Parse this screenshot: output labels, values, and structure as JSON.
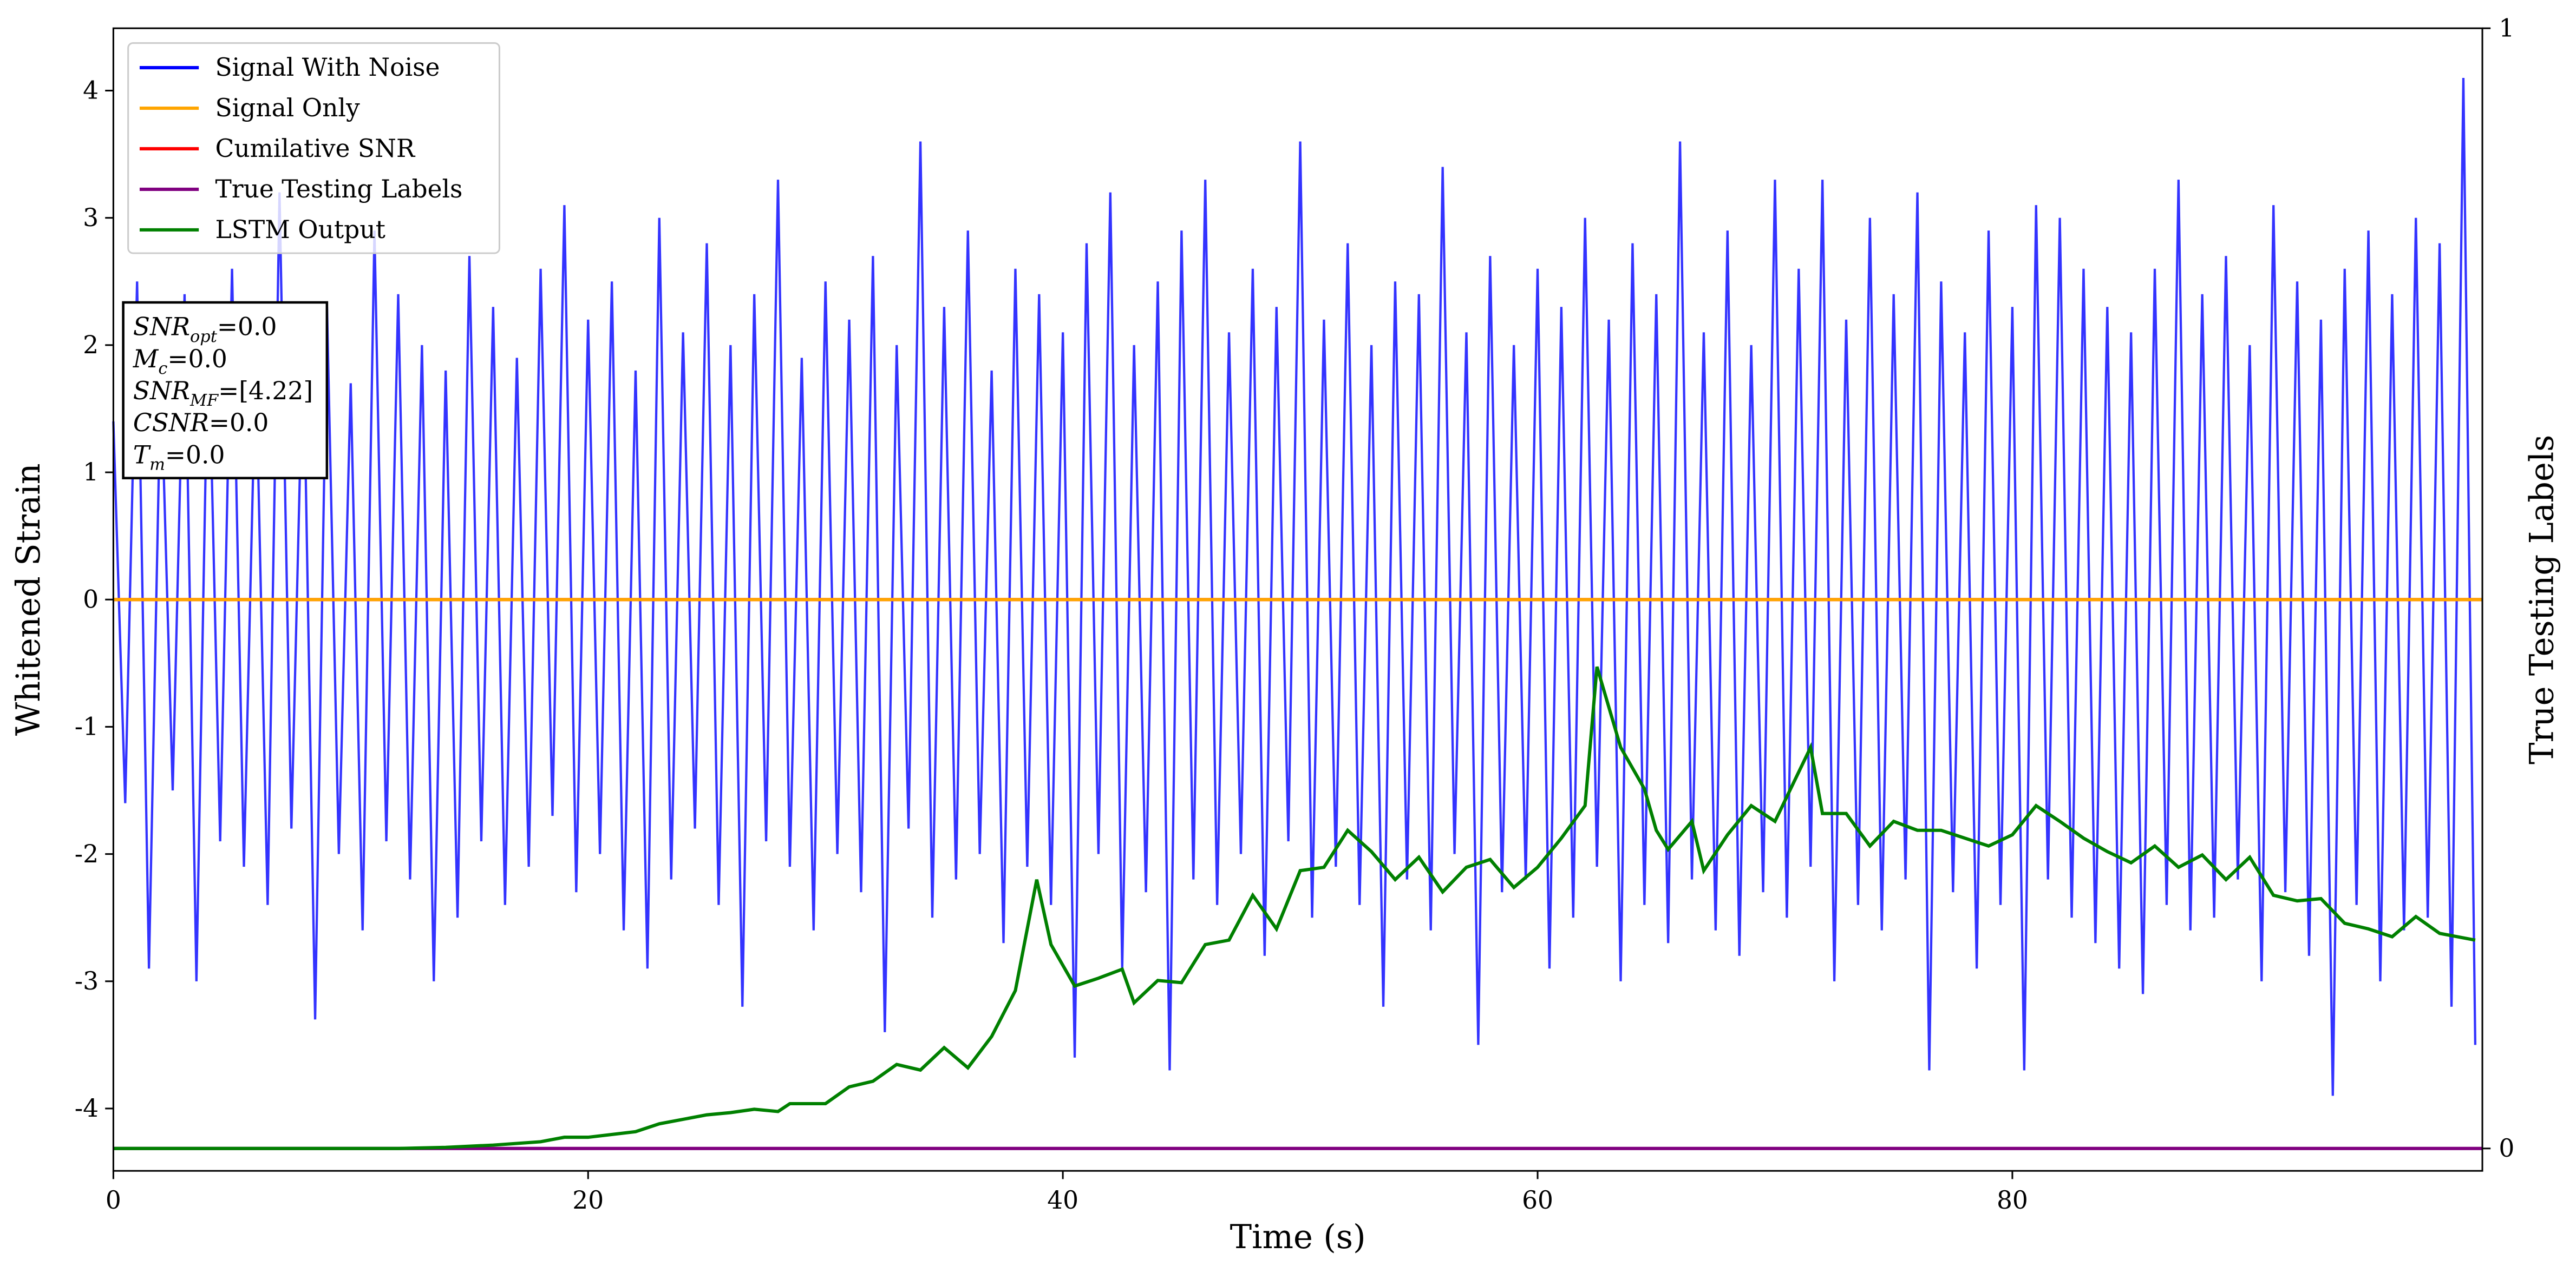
{
  "chart_data": {
    "type": "line",
    "x_label": "Time (s)",
    "y_label": "Whitened Strain",
    "y2_label": "True Testing Labels",
    "xlim": [
      0,
      99.8
    ],
    "ylim": [
      -4.49,
      4.49
    ],
    "y2lim": [
      -0.02,
      1
    ],
    "xticks": [
      0,
      20,
      40,
      60,
      80
    ],
    "yticks": [
      -4,
      -3,
      -2,
      -1,
      0,
      1,
      2,
      3,
      4
    ],
    "y2ticks": [
      0,
      1
    ],
    "legend": "upper left",
    "annotation": [
      {
        "main": "SNR",
        "sub": "opt",
        "rest": "=0.0"
      },
      {
        "main": "M",
        "sub": "c",
        "rest": "=0.0"
      },
      {
        "main": "SNR",
        "sub": "MF",
        "rest": "=[4.22]"
      },
      {
        "main": "CSNR",
        "sub": null,
        "rest": "=0.0"
      },
      {
        "main": "T",
        "sub": "m",
        "rest": "=0.0"
      }
    ],
    "series": [
      {
        "name": "Signal With Noise",
        "color": "#0000ff",
        "axis": "y",
        "x": [
          0,
          0.5,
          1,
          1.5,
          2,
          2.5,
          3,
          3.5,
          4,
          4.5,
          5,
          5.5,
          6,
          6.5,
          7,
          7.5,
          8,
          8.5,
          9,
          9.5,
          10,
          10.5,
          11,
          11.5,
          12,
          12.5,
          13,
          13.5,
          14,
          14.5,
          15,
          15.5,
          16,
          16.5,
          17,
          17.5,
          18,
          18.5,
          19,
          19.5,
          20,
          20.5,
          21,
          21.5,
          22,
          22.5,
          23,
          23.5,
          24,
          24.5,
          25,
          25.5,
          26,
          26.5,
          27,
          27.5,
          28,
          28.5,
          29,
          29.5,
          30,
          30.5,
          31,
          31.5,
          32,
          32.5,
          33,
          33.5,
          34,
          34.5,
          35,
          35.5,
          36,
          36.5,
          37,
          37.5,
          38,
          38.5,
          39,
          39.5,
          40,
          40.5,
          41,
          41.5,
          42,
          42.5,
          43,
          43.5,
          44,
          44.5,
          45,
          45.5,
          46,
          46.5,
          47,
          47.5,
          48,
          48.5,
          49,
          49.5,
          50,
          50.5,
          51,
          51.5,
          52,
          52.5,
          53,
          53.5,
          54,
          54.5,
          55,
          55.5,
          56,
          56.5,
          57,
          57.5,
          58,
          58.5,
          59,
          59.5,
          60,
          60.5,
          61,
          61.5,
          62,
          62.5,
          63,
          63.5,
          64,
          64.5,
          65,
          65.5,
          66,
          66.5,
          67,
          67.5,
          68,
          68.5,
          69,
          69.5,
          70,
          70.5,
          71,
          71.5,
          72,
          72.5,
          73,
          73.5,
          74,
          74.5,
          75,
          75.5,
          76,
          76.5,
          77,
          77.5,
          78,
          78.5,
          79,
          79.5,
          80,
          80.5,
          81,
          81.5,
          82,
          82.5,
          83,
          83.5,
          84,
          84.5,
          85,
          85.5,
          86,
          86.5,
          87,
          87.5,
          88,
          88.5,
          89,
          89.5,
          90,
          90.5,
          91,
          91.5,
          92,
          92.5,
          93,
          93.5,
          94,
          94.5,
          95,
          95.5,
          96,
          96.5,
          97,
          97.5,
          98,
          98.5,
          99,
          99.5
        ],
        "values": [
          1.4,
          -1.6,
          2.5,
          -2.9,
          1.8,
          -1.5,
          2.4,
          -3.0,
          2.2,
          -1.9,
          2.6,
          -2.1,
          1.9,
          -2.4,
          3.2,
          -1.8,
          2.1,
          -3.3,
          2.3,
          -2.0,
          1.7,
          -2.6,
          2.9,
          -1.9,
          2.4,
          -2.2,
          2.0,
          -3.0,
          1.8,
          -2.5,
          2.7,
          -1.9,
          2.3,
          -2.4,
          1.9,
          -2.1,
          2.6,
          -1.7,
          3.1,
          -2.3,
          2.2,
          -2.0,
          2.5,
          -2.6,
          1.8,
          -2.9,
          3.0,
          -2.2,
          2.1,
          -1.8,
          2.8,
          -2.4,
          2.0,
          -3.2,
          2.4,
          -1.9,
          3.3,
          -2.1,
          1.9,
          -2.6,
          2.5,
          -2.0,
          2.2,
          -2.3,
          2.7,
          -3.4,
          2.0,
          -1.8,
          3.6,
          -2.5,
          2.3,
          -2.2,
          2.9,
          -2.0,
          1.8,
          -2.7,
          2.6,
          -2.1,
          2.4,
          -2.4,
          2.1,
          -3.6,
          2.8,
          -2.0,
          3.2,
          -2.9,
          2.0,
          -2.3,
          2.5,
          -3.7,
          2.9,
          -2.2,
          3.3,
          -2.4,
          2.1,
          -2.0,
          2.6,
          -2.8,
          2.3,
          -1.9,
          3.6,
          -2.5,
          2.2,
          -2.1,
          2.8,
          -2.4,
          2.0,
          -3.2,
          2.5,
          -2.2,
          2.4,
          -2.6,
          3.4,
          -2.0,
          2.1,
          -3.5,
          2.7,
          -2.3,
          2.0,
          -2.2,
          2.6,
          -2.9,
          2.3,
          -2.5,
          3.0,
          -2.1,
          2.2,
          -3.0,
          2.8,
          -2.4,
          2.4,
          -2.7,
          3.6,
          -2.2,
          2.1,
          -2.6,
          2.9,
          -2.8,
          2.0,
          -2.3,
          3.3,
          -2.5,
          2.6,
          -2.1,
          3.3,
          -3.0,
          2.2,
          -2.4,
          3.0,
          -2.6,
          2.4,
          -2.2,
          3.2,
          -3.7,
          2.5,
          -2.3,
          2.1,
          -2.9,
          2.9,
          -2.4,
          2.3,
          -3.7,
          3.1,
          -2.2,
          3.0,
          -2.5,
          2.6,
          -2.7,
          2.3,
          -2.9,
          2.1,
          -3.1,
          2.6,
          -2.4,
          3.3,
          -2.6,
          2.4,
          -2.5,
          2.7,
          -2.2,
          2.0,
          -3.0,
          3.1,
          -2.3,
          2.5,
          -2.8,
          2.2,
          -3.9,
          2.6,
          -2.4,
          2.9,
          -3.0,
          2.4,
          -2.6,
          3.0,
          -2.5,
          2.8,
          -3.2,
          4.1,
          -3.5
        ]
      },
      {
        "name": "Signal Only",
        "color": "#ffa500",
        "axis": "y",
        "x": [
          0,
          99.8
        ],
        "values": [
          0,
          0
        ]
      },
      {
        "name": "Cumilative SNR",
        "color": "#ff0000",
        "axis": "y",
        "x": [
          0,
          99.8
        ],
        "values": [
          0,
          0
        ]
      },
      {
        "name": "True Testing Labels",
        "color": "#800080",
        "axis": "y2",
        "x": [
          0,
          99.8
        ],
        "values": [
          0,
          0
        ]
      },
      {
        "name": "LSTM Output",
        "color": "#008000",
        "axis": "y2",
        "x": [
          0,
          4,
          8,
          12,
          14,
          16,
          18,
          19,
          20,
          22,
          23,
          25,
          26,
          27,
          28,
          28.5,
          30,
          31,
          32,
          33,
          34,
          35,
          36,
          37,
          38,
          38.9,
          39.5,
          40.5,
          41.5,
          42.5,
          43,
          44,
          45,
          46,
          47,
          48,
          49,
          50,
          51,
          52,
          53,
          54,
          55,
          56,
          57,
          58,
          59,
          60,
          61,
          62,
          62.5,
          63.5,
          64.5,
          65,
          65.5,
          66.5,
          67,
          68,
          69,
          70,
          71,
          71.5,
          72,
          73,
          74,
          75,
          76,
          77,
          78,
          79,
          80,
          81,
          82,
          83,
          84,
          85,
          86,
          87,
          88,
          89,
          90,
          91,
          92,
          93,
          94,
          95,
          96,
          97,
          98,
          99.5
        ],
        "values": [
          0,
          0,
          0,
          0,
          0.001,
          0.003,
          0.006,
          0.01,
          0.01,
          0.015,
          0.022,
          0.03,
          0.032,
          0.035,
          0.033,
          0.04,
          0.04,
          0.055,
          0.06,
          0.075,
          0.07,
          0.09,
          0.072,
          0.1,
          0.141,
          0.24,
          0.182,
          0.145,
          0.152,
          0.16,
          0.13,
          0.15,
          0.148,
          0.182,
          0.186,
          0.226,
          0.196,
          0.248,
          0.251,
          0.284,
          0.265,
          0.24,
          0.26,
          0.229,
          0.251,
          0.258,
          0.233,
          0.251,
          0.277,
          0.306,
          0.43,
          0.358,
          0.321,
          0.284,
          0.267,
          0.292,
          0.248,
          0.28,
          0.306,
          0.292,
          0.336,
          0.358,
          0.299,
          0.299,
          0.27,
          0.292,
          0.284,
          0.284,
          0.277,
          0.27,
          0.28,
          0.306,
          0.292,
          0.277,
          0.265,
          0.255,
          0.27,
          0.251,
          0.262,
          0.24,
          0.26,
          0.226,
          0.221,
          0.223,
          0.201,
          0.196,
          0.189,
          0.207,
          0.192,
          0.186
        ]
      }
    ]
  }
}
